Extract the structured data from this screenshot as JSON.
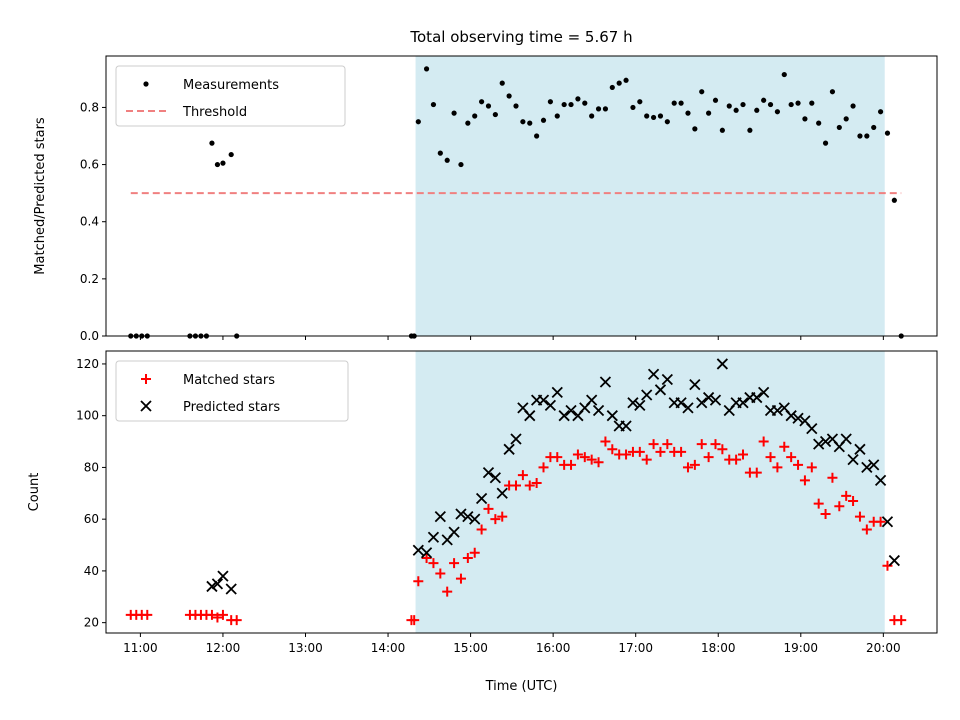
{
  "chart_data": [
    {
      "type": "scatter",
      "title": "Total observing time = 5.67 h",
      "ylabel": "Matched/Predicted stars",
      "xlabel": "",
      "ylim": [
        0,
        0.98
      ],
      "xlim": [
        "10:35",
        "20:39"
      ],
      "yticks": [
        0.0,
        0.2,
        0.4,
        0.6,
        0.8
      ],
      "ytick_labels": [
        "0.0",
        "0.2",
        "0.4",
        "0.6",
        "0.8"
      ],
      "highlight_span": {
        "from": "14:20",
        "to": "20:01",
        "color": "#d4ebf2"
      },
      "legend": {
        "placement": "top-left",
        "entries": [
          "Measurements",
          "Threshold"
        ]
      },
      "series": [
        {
          "name": "Measurements",
          "marker": "dot",
          "color": "#000000",
          "points": [
            [
              "10:53",
              0
            ],
            [
              "10:57",
              0
            ],
            [
              "11:01",
              0
            ],
            [
              "11:05",
              0
            ],
            [
              "11:36",
              0
            ],
            [
              "11:40",
              0
            ],
            [
              "11:44",
              0
            ],
            [
              "11:48",
              0
            ],
            [
              "11:52",
              0.675
            ],
            [
              "11:56",
              0.6
            ],
            [
              "12:00",
              0.605
            ],
            [
              "12:06",
              0.635
            ],
            [
              "12:10",
              0
            ],
            [
              "14:17",
              0
            ],
            [
              "14:19",
              0
            ],
            [
              "14:22",
              0.75
            ],
            [
              "14:28",
              0.935
            ],
            [
              "14:33",
              0.81
            ],
            [
              "14:38",
              0.64
            ],
            [
              "14:43",
              0.615
            ],
            [
              "14:48",
              0.78
            ],
            [
              "14:53",
              0.6
            ],
            [
              "14:58",
              0.745
            ],
            [
              "15:03",
              0.77
            ],
            [
              "15:08",
              0.82
            ],
            [
              "15:13",
              0.805
            ],
            [
              "15:18",
              0.775
            ],
            [
              "15:23",
              0.885
            ],
            [
              "15:28",
              0.84
            ],
            [
              "15:33",
              0.805
            ],
            [
              "15:38",
              0.75
            ],
            [
              "15:43",
              0.745
            ],
            [
              "15:48",
              0.7
            ],
            [
              "15:53",
              0.755
            ],
            [
              "15:58",
              0.82
            ],
            [
              "16:03",
              0.77
            ],
            [
              "16:08",
              0.81
            ],
            [
              "16:13",
              0.81
            ],
            [
              "16:18",
              0.83
            ],
            [
              "16:23",
              0.815
            ],
            [
              "16:28",
              0.77
            ],
            [
              "16:33",
              0.795
            ],
            [
              "16:38",
              0.795
            ],
            [
              "16:43",
              0.87
            ],
            [
              "16:48",
              0.885
            ],
            [
              "16:53",
              0.895
            ],
            [
              "16:58",
              0.8
            ],
            [
              "17:03",
              0.82
            ],
            [
              "17:08",
              0.77
            ],
            [
              "17:13",
              0.765
            ],
            [
              "17:18",
              0.77
            ],
            [
              "17:23",
              0.75
            ],
            [
              "17:28",
              0.815
            ],
            [
              "17:33",
              0.815
            ],
            [
              "17:38",
              0.78
            ],
            [
              "17:43",
              0.725
            ],
            [
              "17:48",
              0.855
            ],
            [
              "17:53",
              0.78
            ],
            [
              "17:58",
              0.825
            ],
            [
              "18:03",
              0.72
            ],
            [
              "18:08",
              0.805
            ],
            [
              "18:13",
              0.79
            ],
            [
              "18:18",
              0.81
            ],
            [
              "18:23",
              0.72
            ],
            [
              "18:28",
              0.79
            ],
            [
              "18:33",
              0.825
            ],
            [
              "18:38",
              0.81
            ],
            [
              "18:43",
              0.785
            ],
            [
              "18:48",
              0.915
            ],
            [
              "18:53",
              0.81
            ],
            [
              "18:58",
              0.815
            ],
            [
              "19:03",
              0.76
            ],
            [
              "19:08",
              0.815
            ],
            [
              "19:13",
              0.745
            ],
            [
              "19:18",
              0.675
            ],
            [
              "19:23",
              0.855
            ],
            [
              "19:28",
              0.73
            ],
            [
              "19:33",
              0.76
            ],
            [
              "19:38",
              0.805
            ],
            [
              "19:43",
              0.7
            ],
            [
              "19:48",
              0.7
            ],
            [
              "19:53",
              0.73
            ],
            [
              "19:58",
              0.785
            ],
            [
              "20:03",
              0.71
            ],
            [
              "20:08",
              0.475
            ],
            [
              "20:13",
              0
            ]
          ]
        },
        {
          "name": "Threshold",
          "marker": "dashed-line",
          "color": "#f08080",
          "points": [
            [
              "10:53",
              0.5
            ],
            [
              "20:13",
              0.5
            ]
          ]
        }
      ]
    },
    {
      "type": "scatter",
      "title": "",
      "ylabel": "Count",
      "xlabel": "Time (UTC)",
      "ylim": [
        16,
        125
      ],
      "xlim": [
        "10:35",
        "20:39"
      ],
      "yticks": [
        20,
        40,
        60,
        80,
        100,
        120
      ],
      "ytick_labels": [
        "20",
        "40",
        "60",
        "80",
        "100",
        "120"
      ],
      "xticks": [
        "11:00",
        "12:00",
        "13:00",
        "14:00",
        "15:00",
        "16:00",
        "17:00",
        "18:00",
        "19:00",
        "20:00"
      ],
      "highlight_span": {
        "from": "14:20",
        "to": "20:01",
        "color": "#d4ebf2"
      },
      "legend": {
        "placement": "top-left",
        "entries": [
          "Matched stars",
          "Predicted stars"
        ]
      },
      "series": [
        {
          "name": "Matched stars",
          "marker": "plus",
          "color": "#ff0000",
          "points": [
            [
              "10:53",
              23
            ],
            [
              "10:57",
              23
            ],
            [
              "11:01",
              23
            ],
            [
              "11:05",
              23
            ],
            [
              "11:36",
              23
            ],
            [
              "11:40",
              23
            ],
            [
              "11:44",
              23
            ],
            [
              "11:48",
              23
            ],
            [
              "11:52",
              23
            ],
            [
              "11:56",
              22
            ],
            [
              "12:00",
              23
            ],
            [
              "12:06",
              21
            ],
            [
              "12:10",
              21
            ],
            [
              "14:17",
              21
            ],
            [
              "14:19",
              21
            ],
            [
              "14:22",
              36
            ],
            [
              "14:28",
              45
            ],
            [
              "14:33",
              43
            ],
            [
              "14:38",
              39
            ],
            [
              "14:43",
              32
            ],
            [
              "14:48",
              43
            ],
            [
              "14:53",
              37
            ],
            [
              "14:58",
              45
            ],
            [
              "15:03",
              47
            ],
            [
              "15:08",
              56
            ],
            [
              "15:13",
              64
            ],
            [
              "15:18",
              60
            ],
            [
              "15:23",
              61
            ],
            [
              "15:28",
              73
            ],
            [
              "15:33",
              73
            ],
            [
              "15:38",
              77
            ],
            [
              "15:43",
              73
            ],
            [
              "15:48",
              74
            ],
            [
              "15:53",
              80
            ],
            [
              "15:58",
              84
            ],
            [
              "16:03",
              84
            ],
            [
              "16:08",
              81
            ],
            [
              "16:13",
              81
            ],
            [
              "16:18",
              85
            ],
            [
              "16:23",
              84
            ],
            [
              "16:28",
              83
            ],
            [
              "16:33",
              82
            ],
            [
              "16:38",
              90
            ],
            [
              "16:43",
              87
            ],
            [
              "16:48",
              85
            ],
            [
              "16:53",
              85
            ],
            [
              "16:58",
              86
            ],
            [
              "17:03",
              86
            ],
            [
              "17:08",
              83
            ],
            [
              "17:13",
              89
            ],
            [
              "17:18",
              86
            ],
            [
              "17:23",
              89
            ],
            [
              "17:28",
              86
            ],
            [
              "17:33",
              86
            ],
            [
              "17:38",
              80
            ],
            [
              "17:43",
              81
            ],
            [
              "17:48",
              89
            ],
            [
              "17:53",
              84
            ],
            [
              "17:58",
              89
            ],
            [
              "18:03",
              87
            ],
            [
              "18:08",
              83
            ],
            [
              "18:13",
              83
            ],
            [
              "18:18",
              85
            ],
            [
              "18:23",
              78
            ],
            [
              "18:28",
              78
            ],
            [
              "18:33",
              90
            ],
            [
              "18:38",
              84
            ],
            [
              "18:43",
              80
            ],
            [
              "18:48",
              88
            ],
            [
              "18:53",
              84
            ],
            [
              "18:58",
              81
            ],
            [
              "19:03",
              75
            ],
            [
              "19:08",
              80
            ],
            [
              "19:13",
              66
            ],
            [
              "19:18",
              62
            ],
            [
              "19:23",
              76
            ],
            [
              "19:28",
              65
            ],
            [
              "19:33",
              69
            ],
            [
              "19:38",
              67
            ],
            [
              "19:43",
              61
            ],
            [
              "19:48",
              56
            ],
            [
              "19:53",
              59
            ],
            [
              "19:58",
              59
            ],
            [
              "20:03",
              42
            ],
            [
              "20:08",
              21
            ],
            [
              "20:13",
              21
            ]
          ]
        },
        {
          "name": "Predicted stars",
          "marker": "x",
          "color": "#000000",
          "points": [
            [
              "11:52",
              34
            ],
            [
              "11:56",
              35
            ],
            [
              "12:00",
              38
            ],
            [
              "12:06",
              33
            ],
            [
              "14:22",
              48
            ],
            [
              "14:28",
              47
            ],
            [
              "14:33",
              53
            ],
            [
              "14:38",
              61
            ],
            [
              "14:43",
              52
            ],
            [
              "14:48",
              55
            ],
            [
              "14:53",
              62
            ],
            [
              "14:58",
              61
            ],
            [
              "15:03",
              60
            ],
            [
              "15:08",
              68
            ],
            [
              "15:13",
              78
            ],
            [
              "15:18",
              76
            ],
            [
              "15:23",
              70
            ],
            [
              "15:28",
              87
            ],
            [
              "15:33",
              91
            ],
            [
              "15:38",
              103
            ],
            [
              "15:43",
              100
            ],
            [
              "15:48",
              106
            ],
            [
              "15:53",
              106
            ],
            [
              "15:58",
              104
            ],
            [
              "16:03",
              109
            ],
            [
              "16:08",
              100
            ],
            [
              "16:13",
              102
            ],
            [
              "16:18",
              100
            ],
            [
              "16:23",
              103
            ],
            [
              "16:28",
              106
            ],
            [
              "16:33",
              102
            ],
            [
              "16:38",
              113
            ],
            [
              "16:43",
              100
            ],
            [
              "16:48",
              96
            ],
            [
              "16:53",
              96
            ],
            [
              "16:58",
              105
            ],
            [
              "17:03",
              104
            ],
            [
              "17:08",
              108
            ],
            [
              "17:13",
              116
            ],
            [
              "17:18",
              110
            ],
            [
              "17:23",
              114
            ],
            [
              "17:28",
              105
            ],
            [
              "17:33",
              105
            ],
            [
              "17:38",
              103
            ],
            [
              "17:43",
              112
            ],
            [
              "17:48",
              105
            ],
            [
              "17:53",
              107
            ],
            [
              "17:58",
              106
            ],
            [
              "18:03",
              120
            ],
            [
              "18:08",
              102
            ],
            [
              "18:13",
              105
            ],
            [
              "18:18",
              105
            ],
            [
              "18:23",
              107
            ],
            [
              "18:28",
              107
            ],
            [
              "18:33",
              109
            ],
            [
              "18:38",
              102
            ],
            [
              "18:43",
              102
            ],
            [
              "18:48",
              103
            ],
            [
              "18:53",
              100
            ],
            [
              "18:58",
              99
            ],
            [
              "19:03",
              98
            ],
            [
              "19:08",
              95
            ],
            [
              "19:13",
              89
            ],
            [
              "19:18",
              90
            ],
            [
              "19:23",
              91
            ],
            [
              "19:28",
              88
            ],
            [
              "19:33",
              91
            ],
            [
              "19:38",
              83
            ],
            [
              "19:43",
              87
            ],
            [
              "19:48",
              80
            ],
            [
              "19:53",
              81
            ],
            [
              "19:58",
              75
            ],
            [
              "20:03",
              59
            ],
            [
              "20:08",
              44
            ]
          ]
        }
      ]
    }
  ]
}
